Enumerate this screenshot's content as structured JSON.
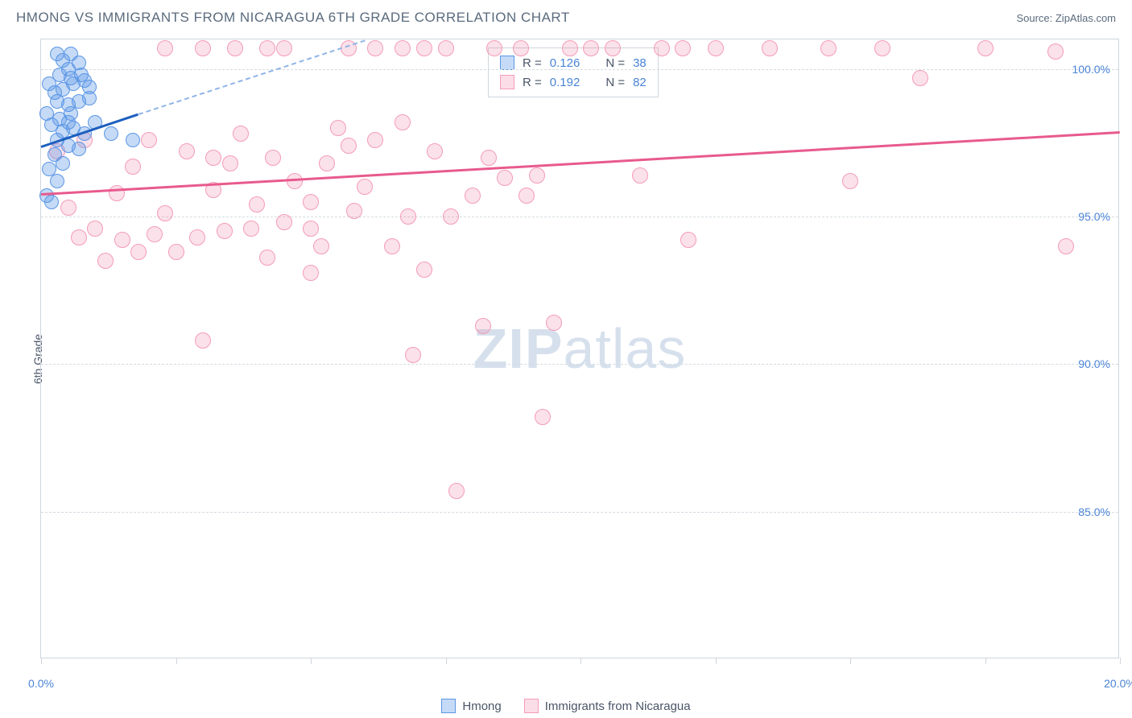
{
  "header": {
    "title": "HMONG VS IMMIGRANTS FROM NICARAGUA 6TH GRADE CORRELATION CHART",
    "source": "Source: ZipAtlas.com"
  },
  "y_axis": {
    "label": "6th Grade"
  },
  "watermark": {
    "strong": "ZIP",
    "light": "atlas"
  },
  "legend": {
    "series1": "Hmong",
    "series2": "Immigrants from Nicaragua"
  },
  "stats": {
    "s1": {
      "r_label": "R =",
      "r_val": "0.126",
      "n_label": "N =",
      "n_val": "38"
    },
    "s2": {
      "r_label": "R =",
      "r_val": "0.192",
      "n_label": "N =",
      "n_val": "82"
    }
  },
  "chart": {
    "type": "scatter",
    "background_color": "#ffffff",
    "grid_color": "#d5dce3",
    "xlim": [
      0,
      20
    ],
    "ylim": [
      80,
      101
    ],
    "y_ticks": [
      {
        "v": 100,
        "label": "100.0%"
      },
      {
        "v": 95,
        "label": "95.0%"
      },
      {
        "v": 90,
        "label": "90.0%"
      },
      {
        "v": 85,
        "label": "85.0%"
      }
    ],
    "x_ticks": [
      {
        "v": 0,
        "label": "0.0%"
      },
      {
        "v": 2.5,
        "label": ""
      },
      {
        "v": 5,
        "label": ""
      },
      {
        "v": 7.5,
        "label": ""
      },
      {
        "v": 10,
        "label": ""
      },
      {
        "v": 12.5,
        "label": ""
      },
      {
        "v": 15,
        "label": ""
      },
      {
        "v": 17.5,
        "label": ""
      },
      {
        "v": 20,
        "label": "20.0%"
      }
    ],
    "series": {
      "blue": {
        "color": "#5a96e6",
        "marker_size": 18,
        "trend_solid": {
          "x1": 0.0,
          "y1": 97.4,
          "x2": 1.8,
          "y2": 98.5,
          "color": "#1e5fbf",
          "width": 3
        },
        "trend_dashed": {
          "x1": 1.8,
          "y1": 98.5,
          "x2": 6.0,
          "y2": 101.0,
          "color": "#8fb4e8",
          "width": 2
        },
        "points": [
          [
            0.3,
            100.5
          ],
          [
            0.4,
            100.3
          ],
          [
            0.55,
            100.5
          ],
          [
            0.7,
            100.2
          ],
          [
            0.5,
            100.0
          ],
          [
            0.35,
            99.8
          ],
          [
            0.55,
            99.7
          ],
          [
            0.75,
            99.8
          ],
          [
            0.6,
            99.5
          ],
          [
            0.8,
            99.6
          ],
          [
            0.4,
            99.3
          ],
          [
            0.25,
            99.2
          ],
          [
            0.3,
            98.9
          ],
          [
            0.5,
            98.8
          ],
          [
            0.7,
            98.9
          ],
          [
            0.9,
            99.0
          ],
          [
            0.55,
            98.5
          ],
          [
            0.35,
            98.3
          ],
          [
            0.2,
            98.1
          ],
          [
            0.4,
            97.9
          ],
          [
            0.6,
            98.0
          ],
          [
            0.8,
            97.8
          ],
          [
            0.3,
            97.6
          ],
          [
            0.5,
            97.4
          ],
          [
            0.7,
            97.3
          ],
          [
            0.25,
            97.1
          ],
          [
            0.4,
            96.8
          ],
          [
            0.15,
            96.6
          ],
          [
            0.3,
            96.2
          ],
          [
            0.1,
            95.7
          ],
          [
            0.2,
            95.5
          ],
          [
            0.5,
            98.2
          ],
          [
            1.3,
            97.8
          ],
          [
            1.0,
            98.2
          ],
          [
            1.7,
            97.6
          ],
          [
            0.9,
            99.4
          ],
          [
            0.15,
            99.5
          ],
          [
            0.1,
            98.5
          ]
        ]
      },
      "pink": {
        "color": "#f49cb8",
        "marker_size": 20,
        "trend": {
          "x1": 0.0,
          "y1": 95.8,
          "x2": 20.0,
          "y2": 97.9,
          "color": "#e85a8d",
          "width": 3
        },
        "points": [
          [
            0.3,
            97.2
          ],
          [
            0.5,
            95.3
          ],
          [
            0.7,
            94.3
          ],
          [
            0.8,
            97.6
          ],
          [
            1.0,
            94.6
          ],
          [
            1.2,
            93.5
          ],
          [
            1.4,
            95.8
          ],
          [
            1.5,
            94.2
          ],
          [
            1.7,
            96.7
          ],
          [
            1.8,
            93.8
          ],
          [
            2.0,
            97.6
          ],
          [
            2.1,
            94.4
          ],
          [
            2.3,
            95.1
          ],
          [
            2.5,
            93.8
          ],
          [
            2.7,
            97.2
          ],
          [
            2.9,
            94.3
          ],
          [
            3.0,
            90.8
          ],
          [
            3.2,
            95.9
          ],
          [
            3.2,
            97.0
          ],
          [
            3.4,
            94.5
          ],
          [
            3.5,
            96.8
          ],
          [
            3.7,
            97.8
          ],
          [
            3.9,
            94.6
          ],
          [
            4.0,
            95.4
          ],
          [
            4.2,
            93.6
          ],
          [
            4.3,
            97.0
          ],
          [
            4.5,
            94.8
          ],
          [
            4.7,
            96.2
          ],
          [
            5.0,
            94.6
          ],
          [
            5.0,
            95.5
          ],
          [
            5.0,
            93.1
          ],
          [
            5.2,
            94.0
          ],
          [
            5.3,
            96.8
          ],
          [
            5.5,
            98.0
          ],
          [
            5.7,
            97.4
          ],
          [
            5.8,
            95.2
          ],
          [
            5.7,
            100.7
          ],
          [
            6.0,
            96.0
          ],
          [
            6.2,
            97.6
          ],
          [
            6.2,
            100.7
          ],
          [
            6.5,
            94.0
          ],
          [
            6.7,
            98.2
          ],
          [
            6.7,
            100.7
          ],
          [
            6.8,
            95.0
          ],
          [
            6.9,
            90.3
          ],
          [
            7.1,
            100.7
          ],
          [
            7.1,
            93.2
          ],
          [
            7.3,
            97.2
          ],
          [
            7.5,
            100.7
          ],
          [
            7.6,
            95.0
          ],
          [
            7.7,
            85.7
          ],
          [
            8.0,
            95.7
          ],
          [
            8.2,
            91.3
          ],
          [
            8.3,
            97.0
          ],
          [
            8.4,
            100.7
          ],
          [
            8.6,
            96.3
          ],
          [
            8.9,
            100.7
          ],
          [
            9.0,
            95.7
          ],
          [
            9.2,
            96.4
          ],
          [
            9.3,
            88.2
          ],
          [
            9.5,
            91.4
          ],
          [
            9.8,
            100.7
          ],
          [
            10.2,
            100.7
          ],
          [
            10.6,
            100.7
          ],
          [
            11.1,
            96.4
          ],
          [
            11.5,
            100.7
          ],
          [
            11.9,
            100.7
          ],
          [
            12.0,
            94.2
          ],
          [
            12.5,
            100.7
          ],
          [
            13.5,
            100.7
          ],
          [
            14.6,
            100.7
          ],
          [
            15.0,
            96.2
          ],
          [
            15.6,
            100.7
          ],
          [
            16.3,
            99.7
          ],
          [
            17.5,
            100.7
          ],
          [
            18.8,
            100.6
          ],
          [
            19.0,
            94.0
          ],
          [
            3.0,
            100.7
          ],
          [
            3.6,
            100.7
          ],
          [
            4.2,
            100.7
          ],
          [
            2.3,
            100.7
          ],
          [
            4.5,
            100.7
          ]
        ]
      }
    }
  }
}
